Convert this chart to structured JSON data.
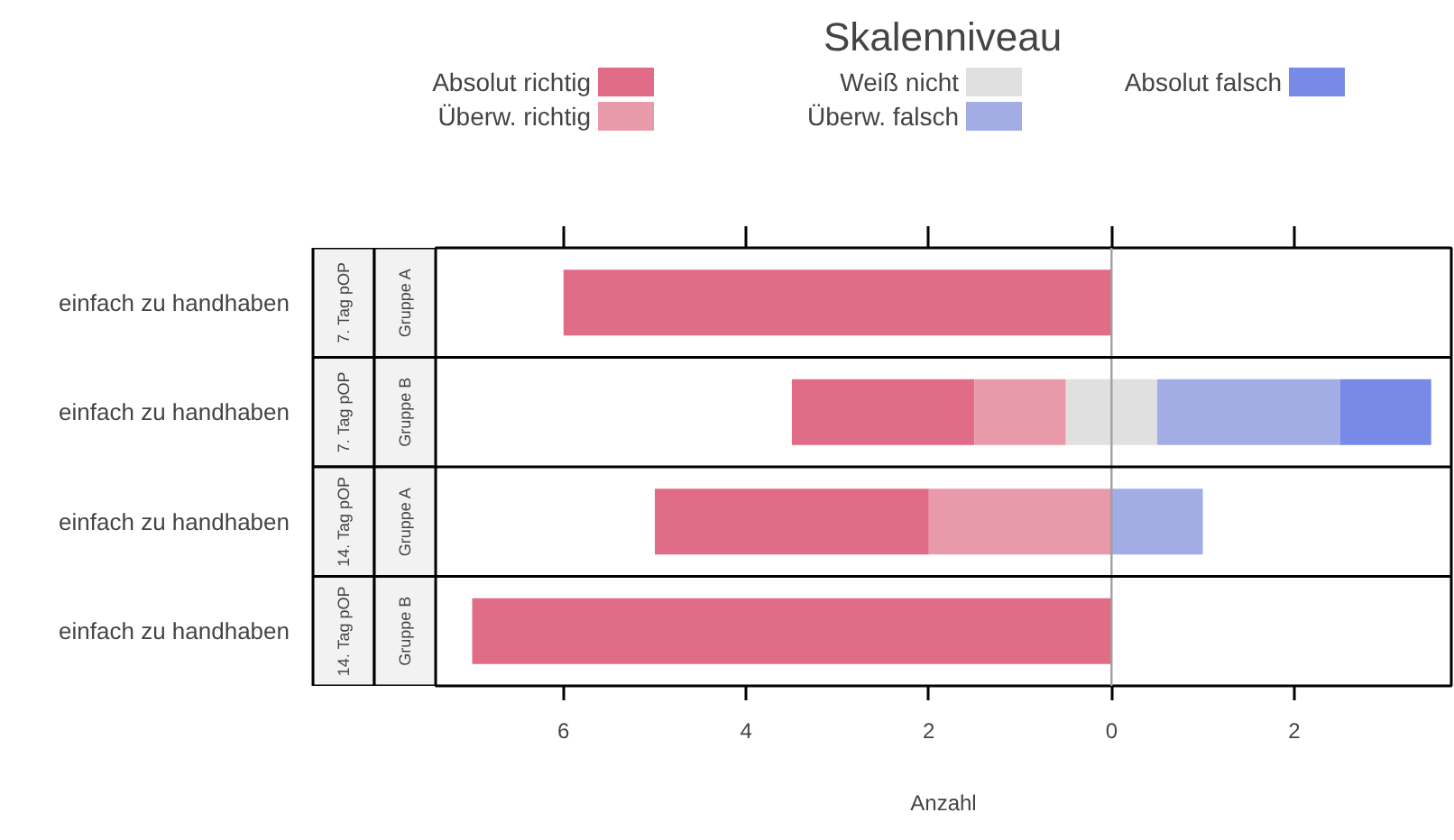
{
  "chart_data": {
    "type": "bar",
    "orientation": "horizontal",
    "legend_title": "Skalenniveau",
    "legend": "top",
    "xlabel": "Anzahl",
    "categories": [
      "einfach zu handhaben",
      "einfach zu handhaben",
      "einfach zu handhaben",
      "einfach zu handhaben"
    ],
    "annotations": [
      "7. Tag pOP",
      "Gruppe A",
      "7. Tag pOP",
      "Gruppe B",
      "14. Tag pOP",
      "Gruppe A",
      "14. Tag pOP",
      "Gruppe B"
    ],
    "xlim": [
      -7.4,
      3.72
    ],
    "xticks": [
      {
        "value": -6,
        "label": "6"
      },
      {
        "value": -4,
        "label": "4"
      },
      {
        "value": -2,
        "label": "2"
      },
      0,
      2
    ],
    "ref_lines": [
      {
        "axis": "x",
        "value": 0,
        "color": "#a0a0a0"
      }
    ],
    "series": [
      {
        "name": "Absolut richtig",
        "color": "#e06c87",
        "base": [
          -6,
          -3.5,
          -5,
          -7
        ],
        "values": [
          6,
          2,
          3,
          7
        ]
      },
      {
        "name": "Überw. richtig",
        "color": "#e89aaa",
        "base": [
          null,
          -1.5,
          -2,
          null
        ],
        "values": [
          null,
          1,
          2,
          null
        ]
      },
      {
        "name": "Weiß nicht",
        "color": "#e0e0e0",
        "base": [
          null,
          -0.5,
          null,
          null
        ],
        "values": [
          null,
          1,
          null,
          null
        ]
      },
      {
        "name": "Überw. falsch",
        "color": "#a3ade5",
        "base": [
          null,
          0.5,
          0,
          null
        ],
        "values": [
          null,
          2,
          1,
          null
        ]
      },
      {
        "name": "Absolut falsch",
        "color": "#778be6",
        "base": [
          null,
          2.5,
          null,
          null
        ],
        "values": [
          null,
          1,
          null,
          null
        ]
      }
    ]
  }
}
